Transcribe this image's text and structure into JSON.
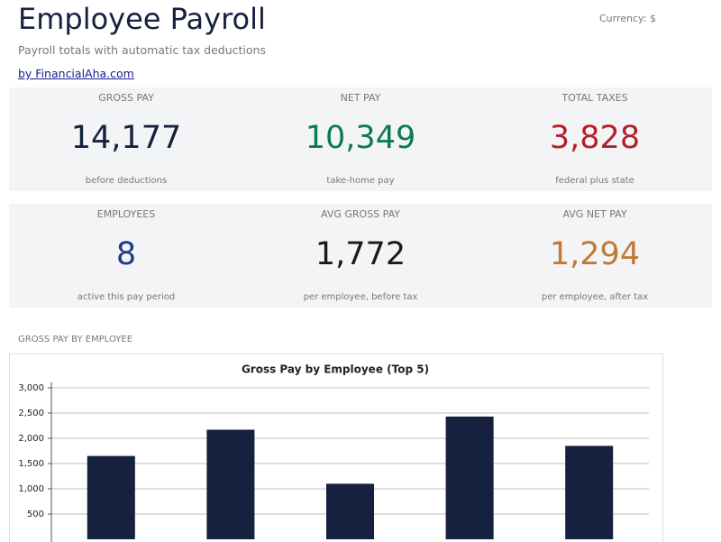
{
  "header": {
    "title": "Employee Payroll",
    "currency": "Currency: $",
    "subtitle": "Payroll totals with automatic tax deductions",
    "link": "by FinancialAha.com"
  },
  "cards": [
    [
      {
        "label": "GROSS PAY",
        "value": "14,177",
        "note": "before deductions",
        "color": "#16213f"
      },
      {
        "label": "NET PAY",
        "value": "10,349",
        "note": "take-home pay",
        "color": "#0b7a55"
      },
      {
        "label": "TOTAL TAXES",
        "value": "3,828",
        "note": "federal plus state",
        "color": "#b3202a"
      }
    ],
    [
      {
        "label": "EMPLOYEES",
        "value": "8",
        "note": "active this pay period",
        "color": "#1e3a8a"
      },
      {
        "label": "AVG GROSS PAY",
        "value": "1,772",
        "note": "per employee, before tax",
        "color": "#1a1a1a"
      },
      {
        "label": "AVG NET PAY",
        "value": "1,294",
        "note": "per employee, after tax",
        "color": "#c07a34"
      }
    ]
  ],
  "section_title": "GROSS PAY BY EMPLOYEE",
  "chart_data": {
    "type": "bar",
    "title": "Gross Pay by Employee (Top 5)",
    "categories": [
      null,
      null,
      null,
      null,
      null
    ],
    "values": [
      1650,
      2170,
      1100,
      2430,
      1850
    ],
    "color": "#16213f",
    "ylim": [
      0,
      3000
    ],
    "yticks": [
      500,
      {
        "value": 1000,
        "label": "1,000"
      },
      {
        "value": 1500,
        "label": "1,500"
      },
      {
        "value": 2000,
        "label": "2,000"
      },
      {
        "value": 2500,
        "label": "2,500"
      },
      {
        "value": 3000,
        "label": "3,000"
      }
    ],
    "grid": true
  }
}
